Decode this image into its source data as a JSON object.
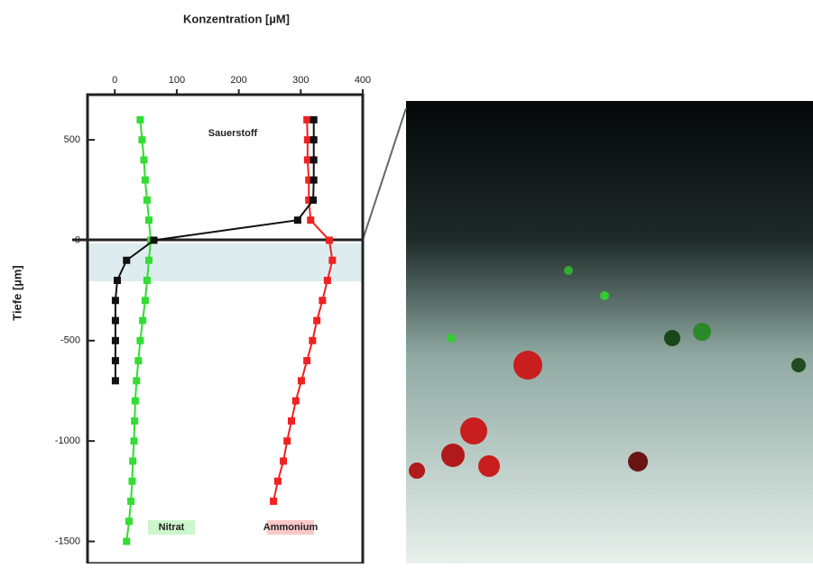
{
  "chart_data": {
    "type": "profile",
    "title": "Konzentration [µM]",
    "y_label": "Tiefe [µm]",
    "annotation": "Sauerstoff",
    "y": [
      600,
      500,
      400,
      300,
      200,
      100,
      0,
      -100,
      -200,
      -300,
      -400,
      -500,
      -600,
      -700,
      -800,
      -900,
      -1000,
      -1100,
      -1200,
      -1300,
      -1400,
      -1500
    ],
    "series": [
      {
        "name": "Nitrat",
        "color": "#33dd33",
        "values": [
          41,
          44,
          47,
          49,
          52,
          55,
          58,
          55,
          52,
          49,
          45,
          41,
          38,
          35,
          33,
          32,
          31,
          29,
          28,
          26,
          23,
          19
        ]
      },
      {
        "name": "Ammonium",
        "color": "#ee2222",
        "values": [
          310,
          311,
          311,
          313,
          313,
          316,
          346,
          351,
          343,
          335,
          326,
          319,
          310,
          301,
          292,
          285,
          278,
          272,
          263,
          256,
          null,
          null
        ]
      },
      {
        "name": "Sauerstoff",
        "color": "#111111",
        "values": [
          321,
          321,
          321,
          321,
          320,
          295,
          63,
          19,
          4,
          1,
          1,
          1,
          1,
          1,
          null,
          null,
          null,
          null,
          null,
          null,
          null,
          null
        ]
      }
    ],
    "xlim": [
      -44,
      400
    ],
    "xticks": [
      0,
      100,
      200,
      300,
      400
    ],
    "ylim": [
      -1610,
      725
    ],
    "yticks": [
      500,
      0,
      -500,
      -1000,
      -1500
    ]
  }
}
